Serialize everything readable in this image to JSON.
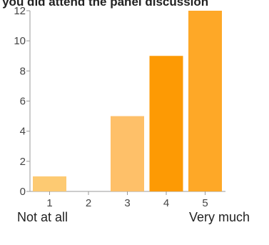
{
  "chart_data": {
    "type": "bar",
    "title": "If you did attend the panel discussion",
    "xlabel": "",
    "ylabel": "",
    "categories": [
      "1",
      "2",
      "3",
      "4",
      "5"
    ],
    "values": [
      1,
      0,
      5,
      9,
      12
    ],
    "ylim": [
      0,
      12
    ],
    "yticks": [
      "0",
      "2",
      "4",
      "6",
      "8",
      "10",
      "12"
    ],
    "grid": false,
    "legend": "none",
    "colors": [
      "#fdca72",
      "#fdca72",
      "#fec069",
      "#fd9a04",
      "#fea827"
    ]
  },
  "scale_captions": {
    "low": "Not at all",
    "high": "Very much"
  }
}
